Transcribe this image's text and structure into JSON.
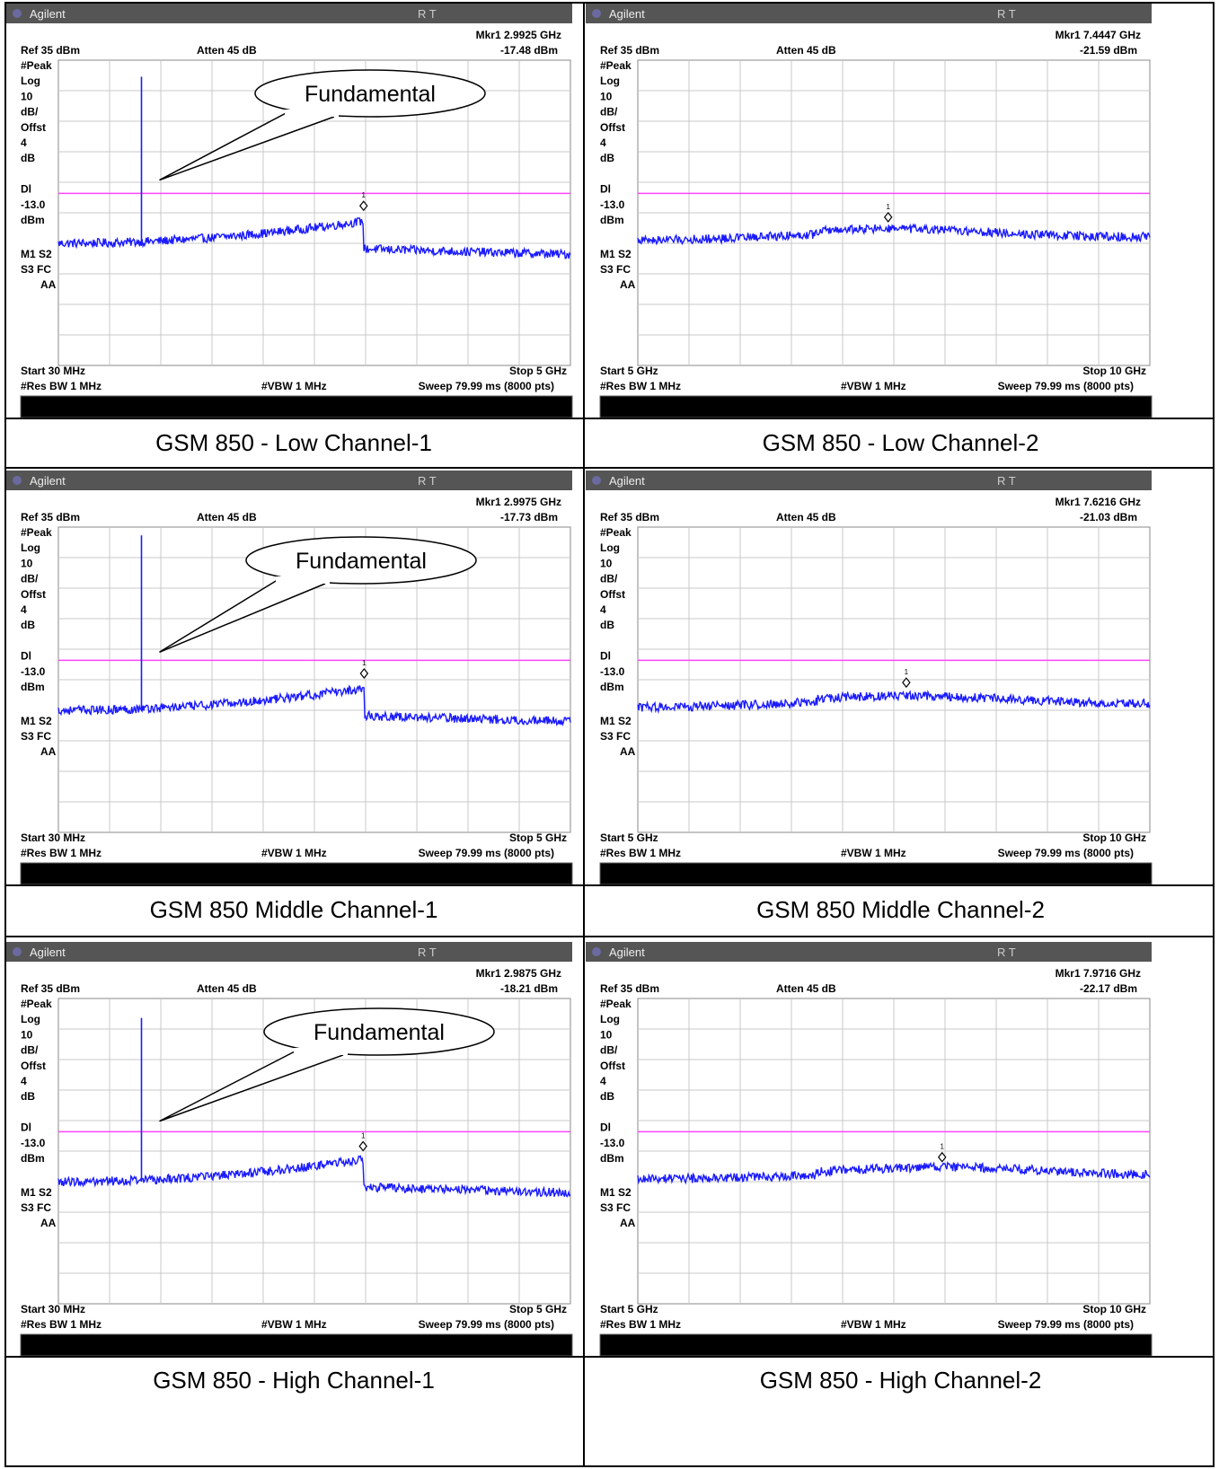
{
  "instrument": {
    "brand": "Agilent",
    "mode_indicators": "R   T"
  },
  "common": {
    "ref_level": "Ref 35 dBm",
    "attenuation": "Atten 45 dB",
    "left_labels": [
      "#Peak",
      "Log",
      "10",
      "dB/",
      "Offst",
      "4",
      "dB",
      "",
      "Dl",
      "-13.0",
      "dBm"
    ],
    "status_labels": [
      "M1  S2",
      "S3  FC",
      "AA"
    ],
    "res_bw": "#Res BW 1 MHz",
    "vbw": "#VBW 1 MHz",
    "sweep": "Sweep 79.99 ms (8000 pts)",
    "fundamental_label": "Fundamental"
  },
  "colors": {
    "trace": "#1a1aff",
    "display_line": "#ff44ff",
    "header_bar": "#555555",
    "grid": "#c8c8c8"
  },
  "chart_data": [
    {
      "type": "line",
      "title": "GSM 850 - Low Channel-1",
      "start": "Start 30 MHz",
      "stop": "Stop 5 GHz",
      "x_range_ghz": [
        0.03,
        5
      ],
      "ylim_dbm": [
        -75,
        35
      ],
      "display_line_dbm": -13.0,
      "marker_freq": "Mkr1  2.9925 GHz",
      "marker_level": "-17.48 dBm",
      "marker_x_ghz": 2.9925,
      "marker_y_dbm": -17.48,
      "fundamental": {
        "freq_ghz": 0.8365,
        "peak_dbm": 29.0
      },
      "noise_floor_dbm": [
        -29,
        -29
      ]
    },
    {
      "type": "line",
      "title": "GSM 850 - Low Channel-2",
      "start": "Start 5 GHz",
      "stop": "Stop 10 GHz",
      "x_range_ghz": [
        5,
        10
      ],
      "ylim_dbm": [
        -75,
        35
      ],
      "display_line_dbm": -13.0,
      "marker_freq": "Mkr1  7.4447 GHz",
      "marker_level": "-21.59 dBm",
      "marker_x_ghz": 7.4447,
      "marker_y_dbm": -21.59,
      "fundamental": null,
      "noise_floor_dbm": [
        -25,
        -25
      ]
    },
    {
      "type": "line",
      "title": "GSM 850 Middle Channel-1",
      "start": "Start 30 MHz",
      "stop": "Stop 5 GHz",
      "x_range_ghz": [
        0.03,
        5
      ],
      "ylim_dbm": [
        -75,
        35
      ],
      "display_line_dbm": -13.0,
      "marker_freq": "Mkr1  2.9975 GHz",
      "marker_level": "-17.73 dBm",
      "marker_x_ghz": 2.9975,
      "marker_y_dbm": -17.73,
      "fundamental": {
        "freq_ghz": 0.8365,
        "peak_dbm": 32.0
      },
      "noise_floor_dbm": [
        -29,
        -29
      ]
    },
    {
      "type": "line",
      "title": "GSM 850 Middle Channel-2",
      "start": "Start 5 GHz",
      "stop": "Stop 10 GHz",
      "x_range_ghz": [
        5,
        10
      ],
      "ylim_dbm": [
        -75,
        35
      ],
      "display_line_dbm": -13.0,
      "marker_freq": "Mkr1  7.6216 GHz",
      "marker_level": "-21.03 dBm",
      "marker_x_ghz": 7.6216,
      "marker_y_dbm": -21.03,
      "fundamental": null,
      "noise_floor_dbm": [
        -25,
        -25
      ]
    },
    {
      "type": "line",
      "title": "GSM 850 - High Channel-1",
      "start": "Start 30 MHz",
      "stop": "Stop 5 GHz",
      "x_range_ghz": [
        0.03,
        5
      ],
      "ylim_dbm": [
        -75,
        35
      ],
      "display_line_dbm": -13.0,
      "marker_freq": "Mkr1  2.9875 GHz",
      "marker_level": "-18.21 dBm",
      "marker_x_ghz": 2.9875,
      "marker_y_dbm": -18.21,
      "fundamental": {
        "freq_ghz": 0.8365,
        "peak_dbm": 28.0
      },
      "noise_floor_dbm": [
        -29,
        -29
      ]
    },
    {
      "type": "line",
      "title": "GSM 850 - High Channel-2",
      "start": "Start 5 GHz",
      "stop": "Stop 10 GHz",
      "x_range_ghz": [
        5,
        10
      ],
      "ylim_dbm": [
        -75,
        35
      ],
      "display_line_dbm": -13.0,
      "marker_freq": "Mkr1  7.9716 GHz",
      "marker_level": "-22.17 dBm",
      "marker_x_ghz": 7.9716,
      "marker_y_dbm": -22.17,
      "fundamental": null,
      "noise_floor_dbm": [
        -25,
        -25
      ]
    }
  ]
}
